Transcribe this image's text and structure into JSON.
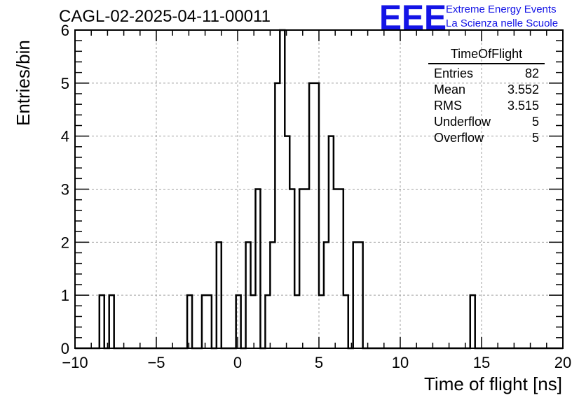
{
  "title": "CAGL-02-2025-04-11-00011",
  "branding": {
    "logo_text": "EEE",
    "line1": "Extreme Energy Events",
    "line2": "La Scienza nelle Scuole",
    "color": "#1414e6"
  },
  "stats_box": {
    "title": "TimeOfFlight",
    "rows": [
      {
        "label": "Entries",
        "value": "82"
      },
      {
        "label": "Mean",
        "value": "3.552"
      },
      {
        "label": "RMS",
        "value": "3.515"
      },
      {
        "label": "Underflow",
        "value": "5"
      },
      {
        "label": "Overflow",
        "value": "5"
      }
    ]
  },
  "chart_data": {
    "type": "bar",
    "title": "CAGL-02-2025-04-11-00011",
    "xlabel": "Time of flight [ns]",
    "ylabel": "Entries/bin",
    "xlim": [
      -10,
      20
    ],
    "ylim": [
      0,
      6
    ],
    "grid": true,
    "bin_width": 0.3,
    "xticks": [
      -10,
      -5,
      0,
      5,
      10,
      15,
      20
    ],
    "xtick_labels": [
      "−10",
      "−5",
      "0",
      "5",
      "10",
      "15",
      "20"
    ],
    "yticks": [
      0,
      1,
      2,
      3,
      4,
      5,
      6
    ],
    "ytick_labels": [
      "0",
      "1",
      "2",
      "3",
      "4",
      "5",
      "6"
    ],
    "bins": [
      {
        "x": -8.5,
        "value": 1
      },
      {
        "x": -7.9,
        "value": 1
      },
      {
        "x": -3.1,
        "value": 1
      },
      {
        "x": -2.2,
        "value": 1
      },
      {
        "x": -1.9,
        "value": 1
      },
      {
        "x": -1.3,
        "value": 2
      },
      {
        "x": -0.1,
        "value": 1
      },
      {
        "x": 0.5,
        "value": 2
      },
      {
        "x": 0.8,
        "value": 1
      },
      {
        "x": 1.1,
        "value": 3
      },
      {
        "x": 1.7,
        "value": 1
      },
      {
        "x": 2.0,
        "value": 2
      },
      {
        "x": 2.3,
        "value": 5
      },
      {
        "x": 2.6,
        "value": 6
      },
      {
        "x": 2.9,
        "value": 4
      },
      {
        "x": 3.2,
        "value": 3
      },
      {
        "x": 3.5,
        "value": 1
      },
      {
        "x": 3.8,
        "value": 3
      },
      {
        "x": 4.1,
        "value": 3
      },
      {
        "x": 4.4,
        "value": 5
      },
      {
        "x": 4.7,
        "value": 5
      },
      {
        "x": 5.0,
        "value": 1
      },
      {
        "x": 5.3,
        "value": 2
      },
      {
        "x": 5.6,
        "value": 4
      },
      {
        "x": 5.9,
        "value": 3
      },
      {
        "x": 6.2,
        "value": 3
      },
      {
        "x": 6.5,
        "value": 1
      },
      {
        "x": 7.1,
        "value": 2
      },
      {
        "x": 7.4,
        "value": 2
      },
      {
        "x": 14.3,
        "value": 1
      }
    ]
  }
}
